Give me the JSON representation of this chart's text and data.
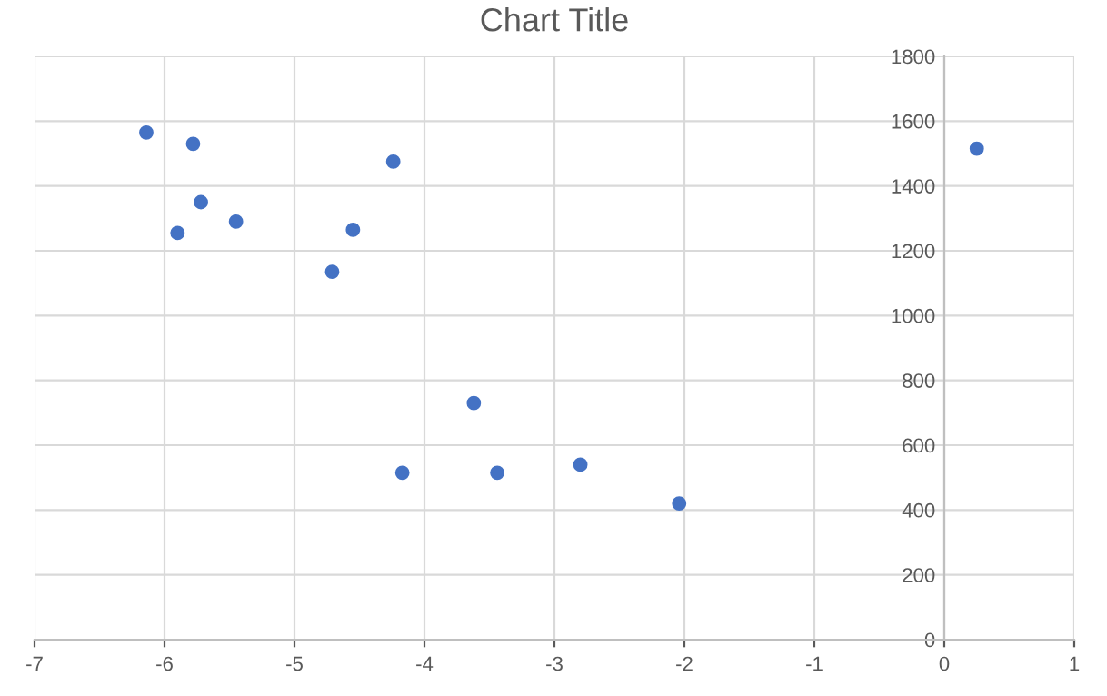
{
  "chart_data": {
    "type": "scatter",
    "title": "Chart Title",
    "x": [
      -6.14,
      -5.78,
      -5.72,
      -5.9,
      -5.45,
      -4.71,
      -4.55,
      -4.24,
      -4.17,
      -3.62,
      -3.44,
      -2.8,
      -2.04,
      0.25
    ],
    "series": [
      {
        "color": "#4472c4",
        "values": [
          1565,
          1530,
          1350,
          1255,
          1290,
          1135,
          1265,
          1475,
          515,
          730,
          515,
          540,
          420,
          1515
        ]
      }
    ],
    "xlim": [
      -7,
      1
    ],
    "xticks": [
      -7,
      -6,
      -5,
      -4,
      -3,
      -2,
      -1,
      0,
      1
    ],
    "ylim": [
      0,
      1800
    ],
    "yticks": [
      0,
      200,
      400,
      600,
      800,
      1000,
      1200,
      1400,
      1600,
      1800
    ],
    "grid": true,
    "marker": "circle",
    "legend": false
  }
}
